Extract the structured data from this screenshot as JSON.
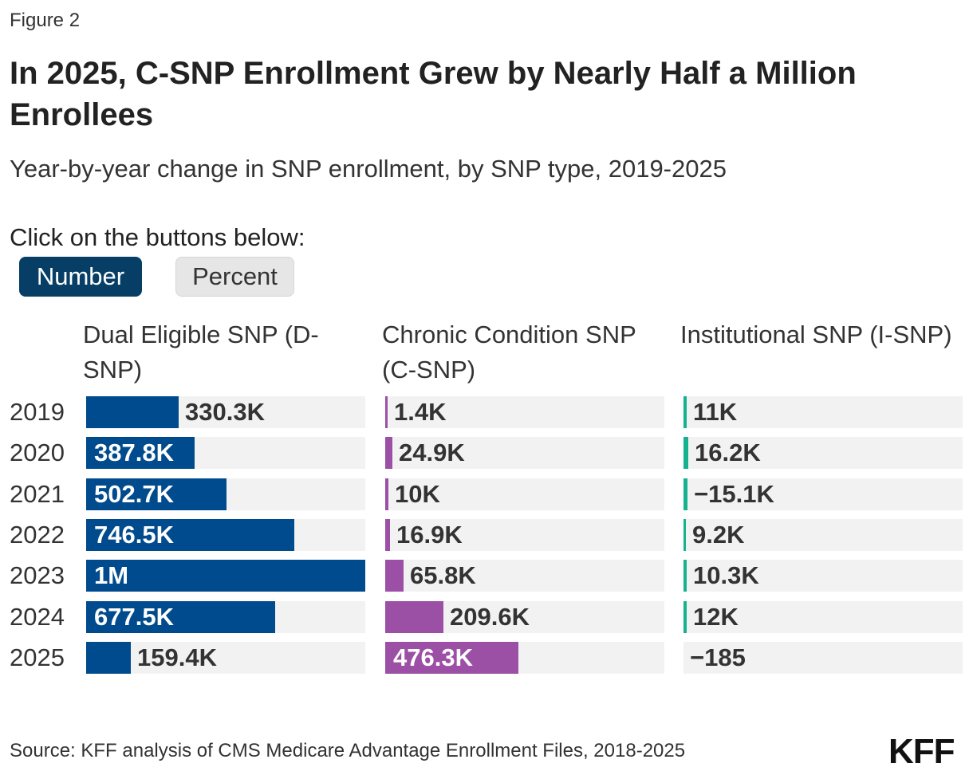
{
  "figure_label": "Figure 2",
  "title": "In 2025, C-SNP Enrollment Grew by Nearly Half a Million Enrollees",
  "subtitle": "Year-by-year change in SNP enrollment, by SNP type, 2019-2025",
  "instruction": "Click on the buttons below:",
  "buttons": {
    "number": "Number",
    "percent": "Percent"
  },
  "source": "Source: KFF analysis of CMS Medicare Advantage Enrollment Files, 2018-2025",
  "logo_text": "KFF",
  "chart_data": {
    "type": "bar",
    "orientation": "horizontal",
    "title": "In 2025, C-SNP Enrollment Grew by Nearly Half a Million Enrollees",
    "categories": [
      "2019",
      "2020",
      "2021",
      "2022",
      "2023",
      "2024",
      "2025"
    ],
    "series": [
      {
        "name": "Dual Eligible SNP (D-SNP)",
        "color": "#004b8d",
        "values": [
          330300,
          387800,
          502700,
          746500,
          1000000,
          677500,
          159400
        ],
        "labels": [
          "330.3K",
          "387.8K",
          "502.7K",
          "746.5K",
          "1M",
          "677.5K",
          "159.4K"
        ]
      },
      {
        "name": "Chronic Condition SNP (C-SNP)",
        "color": "#9b4fa5",
        "values": [
          1400,
          24900,
          10000,
          16900,
          65800,
          209600,
          476300
        ],
        "labels": [
          "1.4K",
          "24.9K",
          "10K",
          "16.9K",
          "65.8K",
          "209.6K",
          "476.3K"
        ]
      },
      {
        "name": "Institutional SNP (I-SNP)",
        "color": "#14b28f",
        "values": [
          11000,
          16200,
          -15100,
          9200,
          10300,
          12000,
          -185
        ],
        "labels": [
          "11K",
          "16.2K",
          "−15.1K",
          "9.2K",
          "10.3K",
          "12K",
          "−185"
        ]
      }
    ],
    "xlim": [
      0,
      1000000
    ]
  }
}
